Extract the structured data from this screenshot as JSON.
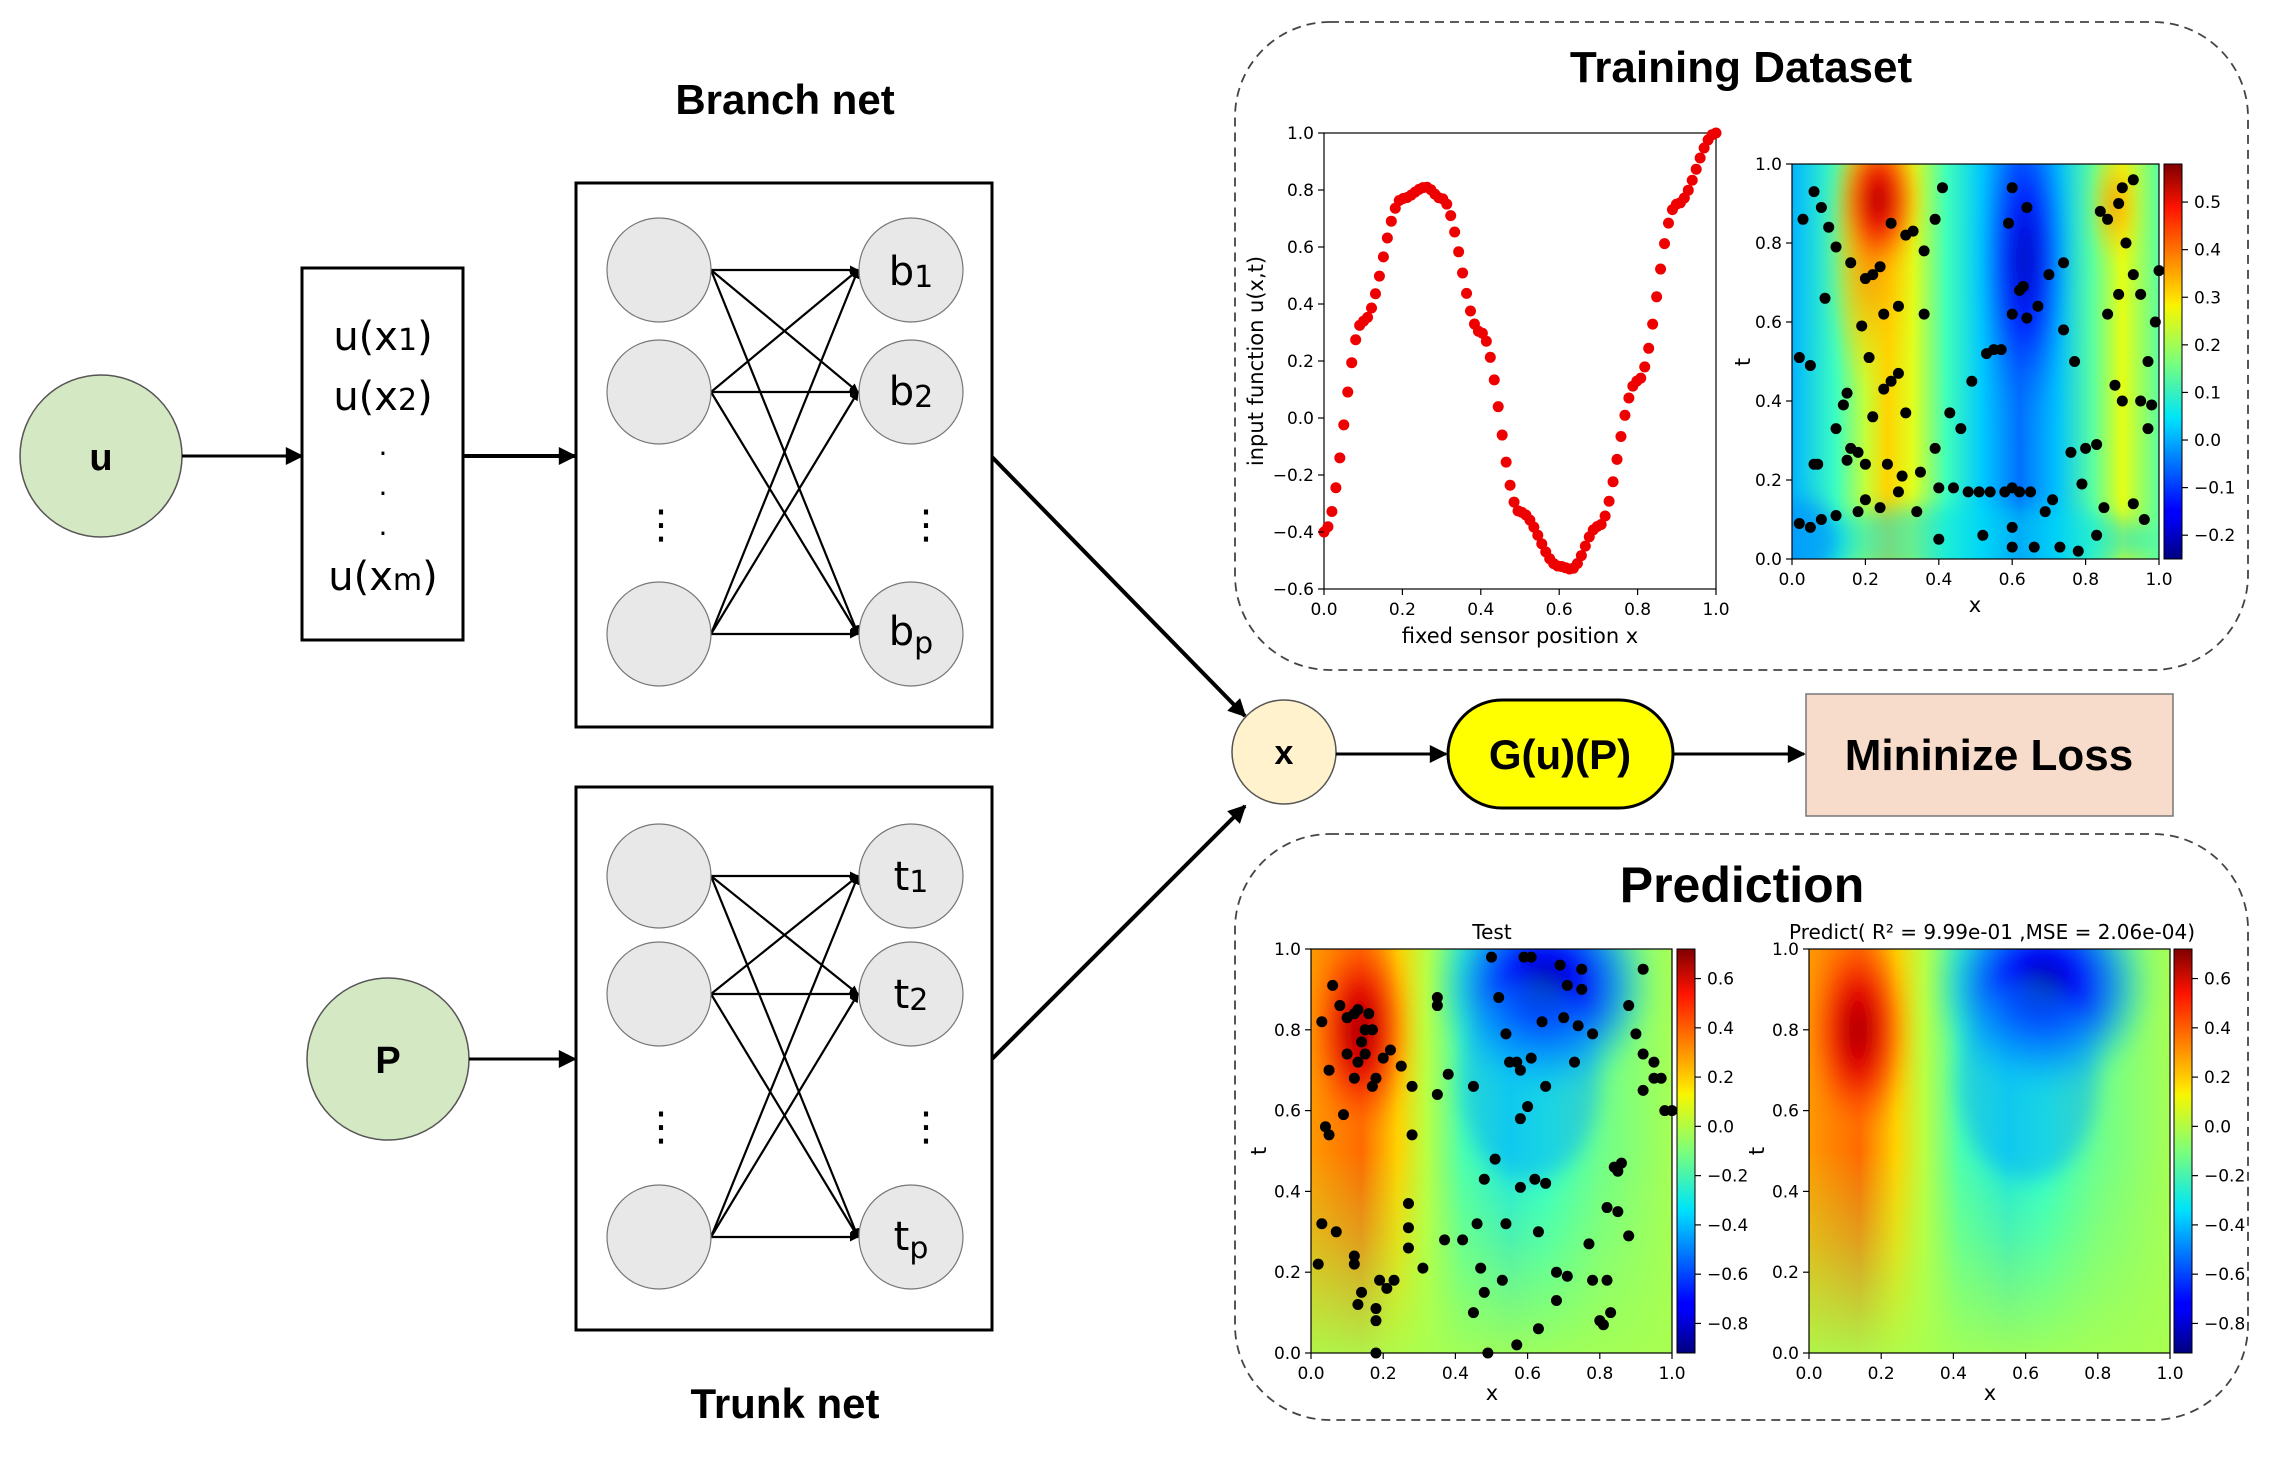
{
  "colors": {
    "input_node_fill": "#D5E8C4",
    "input_node_stroke": "#555555",
    "neuron_fill": "#E8E8E8",
    "mul_node_fill": "#FFF2CC",
    "g_node_fill": "#FFFF00",
    "loss_fill": "#F8DCCB",
    "curve_points": "#EE0000",
    "points": "#000000"
  },
  "labels": {
    "u": "u",
    "p": "P",
    "branch_title": "Branch net",
    "trunk_title": "Trunk net",
    "sensor_u1": "u(x",
    "sensor_u1_sub": "1",
    "sensor_u2": "u(x",
    "sensor_u2_sub": "2",
    "sensor_um": "u(x",
    "sensor_um_sub": "m",
    "paren": ")",
    "dot": ".",
    "vdots": "⋮",
    "b1": "b",
    "b1_sub": "1",
    "b2": "b",
    "b2_sub": "2",
    "bp": "b",
    "bp_sub": "p",
    "t1": "t",
    "t1_sub": "1",
    "t2": "t",
    "t2_sub": "2",
    "tp": "t",
    "tp_sub": "p",
    "mul": "x",
    "g": "G(u)(P)",
    "loss": "Mininize Loss",
    "training_title": "Training Dataset",
    "prediction_title": "Prediction"
  },
  "chart_data": [
    {
      "type": "scatter",
      "title": "",
      "xlabel": "fixed sensor position x",
      "ylabel": "input function u(x,t)",
      "xlim": [
        0.0,
        1.0
      ],
      "ylim": [
        -0.6,
        1.0
      ],
      "xticks": [
        "0.0",
        "0.2",
        "0.4",
        "0.6",
        "0.8",
        "1.0"
      ],
      "yticks": [
        "−0.6",
        "−0.4",
        "−0.2",
        "0.0",
        "0.2",
        "0.4",
        "0.6",
        "0.8",
        "1.0"
      ],
      "series": [
        {
          "points_count": 100,
          "sampled": [
            [
              0.0,
              -0.4
            ],
            [
              0.1,
              0.34
            ],
            [
              0.2,
              0.77
            ],
            [
              0.26,
              0.81
            ],
            [
              0.3,
              0.77
            ],
            [
              0.4,
              0.3
            ],
            [
              0.5,
              -0.33
            ],
            [
              0.6,
              -0.52
            ],
            [
              0.63,
              -0.53
            ],
            [
              0.7,
              -0.38
            ],
            [
              0.8,
              0.13
            ],
            [
              0.9,
              0.75
            ],
            [
              1.0,
              1.0
            ]
          ]
        }
      ]
    },
    {
      "type": "heatmap",
      "title": "",
      "xlabel": "x",
      "ylabel": "t",
      "xlim": [
        0.0,
        1.0
      ],
      "ylim": [
        0.0,
        1.0
      ],
      "xticks": [
        "0.0",
        "0.2",
        "0.4",
        "0.6",
        "0.8",
        "1.0"
      ],
      "yticks": [
        "0.0",
        "0.2",
        "0.4",
        "0.6",
        "0.8",
        "1.0"
      ],
      "colorbar_ticks": [
        "−0.2",
        "−0.1",
        "0.0",
        "0.1",
        "0.2",
        "0.3",
        "0.4",
        "0.5"
      ],
      "colorbar_range": [
        -0.25,
        0.58
      ],
      "points": [
        [
          0.02,
          0.51
        ],
        [
          0.03,
          0.86
        ],
        [
          0.06,
          0.93
        ],
        [
          0.08,
          0.89
        ],
        [
          0.1,
          0.84
        ],
        [
          0.12,
          0.79
        ],
        [
          0.16,
          0.75
        ],
        [
          0.2,
          0.71
        ],
        [
          0.22,
          0.72
        ],
        [
          0.24,
          0.74
        ],
        [
          0.27,
          0.85
        ],
        [
          0.31,
          0.82
        ],
        [
          0.33,
          0.83
        ],
        [
          0.36,
          0.78
        ],
        [
          0.39,
          0.86
        ],
        [
          0.41,
          0.94
        ],
        [
          0.36,
          0.62
        ],
        [
          0.29,
          0.64
        ],
        [
          0.25,
          0.62
        ],
        [
          0.19,
          0.59
        ],
        [
          0.09,
          0.66
        ],
        [
          0.05,
          0.49
        ],
        [
          0.21,
          0.51
        ],
        [
          0.25,
          0.43
        ],
        [
          0.29,
          0.47
        ],
        [
          0.31,
          0.37
        ],
        [
          0.27,
          0.45
        ],
        [
          0.22,
          0.36
        ],
        [
          0.15,
          0.42
        ],
        [
          0.14,
          0.39
        ],
        [
          0.12,
          0.33
        ],
        [
          0.16,
          0.28
        ],
        [
          0.15,
          0.25
        ],
        [
          0.18,
          0.27
        ],
        [
          0.2,
          0.24
        ],
        [
          0.26,
          0.24
        ],
        [
          0.3,
          0.21
        ],
        [
          0.35,
          0.22
        ],
        [
          0.39,
          0.28
        ],
        [
          0.43,
          0.37
        ],
        [
          0.46,
          0.33
        ],
        [
          0.49,
          0.45
        ],
        [
          0.53,
          0.52
        ],
        [
          0.55,
          0.53
        ],
        [
          0.57,
          0.53
        ],
        [
          0.6,
          0.62
        ],
        [
          0.62,
          0.68
        ],
        [
          0.63,
          0.69
        ],
        [
          0.64,
          0.61
        ],
        [
          0.67,
          0.64
        ],
        [
          0.59,
          0.85
        ],
        [
          0.6,
          0.94
        ],
        [
          0.64,
          0.89
        ],
        [
          0.7,
          0.72
        ],
        [
          0.74,
          0.58
        ],
        [
          0.74,
          0.75
        ],
        [
          0.77,
          0.5
        ],
        [
          0.84,
          0.88
        ],
        [
          0.86,
          0.86
        ],
        [
          0.89,
          0.9
        ],
        [
          0.9,
          0.94
        ],
        [
          0.93,
          0.96
        ],
        [
          0.91,
          0.8
        ],
        [
          0.93,
          0.72
        ],
        [
          0.95,
          0.67
        ],
        [
          0.97,
          0.5
        ],
        [
          0.99,
          0.6
        ],
        [
          1.0,
          0.73
        ],
        [
          0.89,
          0.67
        ],
        [
          0.86,
          0.62
        ],
        [
          0.88,
          0.44
        ],
        [
          0.9,
          0.4
        ],
        [
          0.95,
          0.4
        ],
        [
          0.98,
          0.39
        ],
        [
          0.97,
          0.33
        ],
        [
          0.83,
          0.29
        ],
        [
          0.8,
          0.28
        ],
        [
          0.76,
          0.27
        ],
        [
          0.79,
          0.19
        ],
        [
          0.85,
          0.13
        ],
        [
          0.93,
          0.14
        ],
        [
          0.96,
          0.1
        ],
        [
          0.71,
          0.15
        ],
        [
          0.69,
          0.12
        ],
        [
          0.65,
          0.17
        ],
        [
          0.62,
          0.17
        ],
        [
          0.58,
          0.17
        ],
        [
          0.54,
          0.17
        ],
        [
          0.51,
          0.17
        ],
        [
          0.48,
          0.17
        ],
        [
          0.44,
          0.18
        ],
        [
          0.4,
          0.18
        ],
        [
          0.34,
          0.12
        ],
        [
          0.29,
          0.17
        ],
        [
          0.24,
          0.13
        ],
        [
          0.2,
          0.15
        ],
        [
          0.18,
          0.12
        ],
        [
          0.12,
          0.11
        ],
        [
          0.08,
          0.1
        ],
        [
          0.05,
          0.08
        ],
        [
          0.02,
          0.09
        ],
        [
          0.52,
          0.06
        ],
        [
          0.6,
          0.03
        ],
        [
          0.6,
          0.08
        ],
        [
          0.66,
          0.03
        ],
        [
          0.73,
          0.03
        ],
        [
          0.78,
          0.02
        ],
        [
          0.83,
          0.06
        ],
        [
          0.6,
          0.18
        ],
        [
          0.06,
          0.24
        ],
        [
          0.07,
          0.24
        ],
        [
          0.4,
          0.05
        ]
      ]
    },
    {
      "type": "heatmap",
      "title": "Test",
      "xlabel": "x",
      "ylabel": "t",
      "xlim": [
        0.0,
        1.0
      ],
      "ylim": [
        0.0,
        1.0
      ],
      "xticks": [
        "0.0",
        "0.2",
        "0.4",
        "0.6",
        "0.8",
        "1.0"
      ],
      "yticks": [
        "0.0",
        "0.2",
        "0.4",
        "0.6",
        "0.8",
        "1.0"
      ],
      "colorbar_ticks": [
        "−0.8",
        "−0.6",
        "−0.4",
        "−0.2",
        "0.0",
        "0.2",
        "0.4",
        "0.6"
      ],
      "colorbar_range": [
        -0.92,
        0.72
      ],
      "points": [
        [
          0.03,
          0.82
        ],
        [
          0.06,
          0.91
        ],
        [
          0.08,
          0.86
        ],
        [
          0.1,
          0.83
        ],
        [
          0.12,
          0.84
        ],
        [
          0.13,
          0.85
        ],
        [
          0.15,
          0.8
        ],
        [
          0.16,
          0.84
        ],
        [
          0.17,
          0.8
        ],
        [
          0.14,
          0.77
        ],
        [
          0.13,
          0.72
        ],
        [
          0.18,
          0.68
        ],
        [
          0.2,
          0.73
        ],
        [
          0.22,
          0.75
        ],
        [
          0.25,
          0.71
        ],
        [
          0.15,
          0.74
        ],
        [
          0.1,
          0.74
        ],
        [
          0.12,
          0.68
        ],
        [
          0.05,
          0.7
        ],
        [
          0.04,
          0.56
        ],
        [
          0.05,
          0.54
        ],
        [
          0.09,
          0.59
        ],
        [
          0.17,
          0.66
        ],
        [
          0.28,
          0.54
        ],
        [
          0.28,
          0.66
        ],
        [
          0.35,
          0.88
        ],
        [
          0.35,
          0.86
        ],
        [
          0.38,
          0.69
        ],
        [
          0.35,
          0.64
        ],
        [
          0.45,
          0.66
        ],
        [
          0.52,
          0.88
        ],
        [
          0.54,
          0.79
        ],
        [
          0.55,
          0.72
        ],
        [
          0.57,
          0.72
        ],
        [
          0.58,
          0.7
        ],
        [
          0.61,
          0.73
        ],
        [
          0.64,
          0.82
        ],
        [
          0.7,
          0.83
        ],
        [
          0.74,
          0.81
        ],
        [
          0.78,
          0.79
        ],
        [
          0.73,
          0.72
        ],
        [
          0.65,
          0.66
        ],
        [
          0.6,
          0.61
        ],
        [
          0.58,
          0.58
        ],
        [
          0.51,
          0.48
        ],
        [
          0.48,
          0.43
        ],
        [
          0.46,
          0.32
        ],
        [
          0.42,
          0.28
        ],
        [
          0.37,
          0.28
        ],
        [
          0.27,
          0.37
        ],
        [
          0.27,
          0.31
        ],
        [
          0.27,
          0.26
        ],
        [
          0.31,
          0.21
        ],
        [
          0.23,
          0.18
        ],
        [
          0.21,
          0.16
        ],
        [
          0.19,
          0.18
        ],
        [
          0.14,
          0.15
        ],
        [
          0.18,
          0.11
        ],
        [
          0.18,
          0.08
        ],
        [
          0.13,
          0.12
        ],
        [
          0.12,
          0.22
        ],
        [
          0.12,
          0.24
        ],
        [
          0.02,
          0.22
        ],
        [
          0.03,
          0.32
        ],
        [
          0.07,
          0.3
        ],
        [
          0.18,
          0.0
        ],
        [
          0.49,
          0.0
        ],
        [
          0.45,
          0.1
        ],
        [
          0.48,
          0.15
        ],
        [
          0.47,
          0.21
        ],
        [
          0.53,
          0.18
        ],
        [
          0.54,
          0.32
        ],
        [
          0.58,
          0.41
        ],
        [
          0.62,
          0.43
        ],
        [
          0.65,
          0.42
        ],
        [
          0.63,
          0.3
        ],
        [
          0.68,
          0.2
        ],
        [
          0.71,
          0.19
        ],
        [
          0.68,
          0.13
        ],
        [
          0.63,
          0.06
        ],
        [
          0.57,
          0.02
        ],
        [
          0.77,
          0.27
        ],
        [
          0.78,
          0.18
        ],
        [
          0.82,
          0.18
        ],
        [
          0.83,
          0.1
        ],
        [
          0.8,
          0.08
        ],
        [
          0.81,
          0.07
        ],
        [
          0.82,
          0.36
        ],
        [
          0.85,
          0.35
        ],
        [
          0.88,
          0.29
        ],
        [
          0.84,
          0.46
        ],
        [
          0.85,
          0.45
        ],
        [
          0.86,
          0.47
        ],
        [
          0.92,
          0.65
        ],
        [
          0.95,
          0.68
        ],
        [
          0.98,
          0.6
        ],
        [
          1.0,
          0.6
        ],
        [
          0.95,
          0.72
        ],
        [
          0.92,
          0.74
        ],
        [
          0.92,
          0.95
        ],
        [
          0.75,
          0.95
        ],
        [
          0.69,
          0.96
        ],
        [
          0.61,
          0.98
        ],
        [
          0.5,
          0.98
        ],
        [
          0.75,
          0.9
        ],
        [
          0.71,
          0.91
        ],
        [
          0.88,
          0.86
        ],
        [
          0.97,
          0.68
        ],
        [
          0.9,
          0.79
        ],
        [
          0.59,
          0.98
        ]
      ]
    },
    {
      "type": "heatmap",
      "title": "Predict( R² = 9.99e-01 ,MSE = 2.06e-04)",
      "xlabel": "x",
      "ylabel": "t",
      "xlim": [
        0.0,
        1.0
      ],
      "ylim": [
        0.0,
        1.0
      ],
      "xticks": [
        "0.0",
        "0.2",
        "0.4",
        "0.6",
        "0.8",
        "1.0"
      ],
      "yticks": [
        "0.0",
        "0.2",
        "0.4",
        "0.6",
        "0.8",
        "1.0"
      ],
      "colorbar_ticks": [
        "−0.8",
        "−0.6",
        "−0.4",
        "−0.2",
        "0.0",
        "0.2",
        "0.4",
        "0.6"
      ],
      "colorbar_range": [
        -0.92,
        0.72
      ]
    }
  ]
}
